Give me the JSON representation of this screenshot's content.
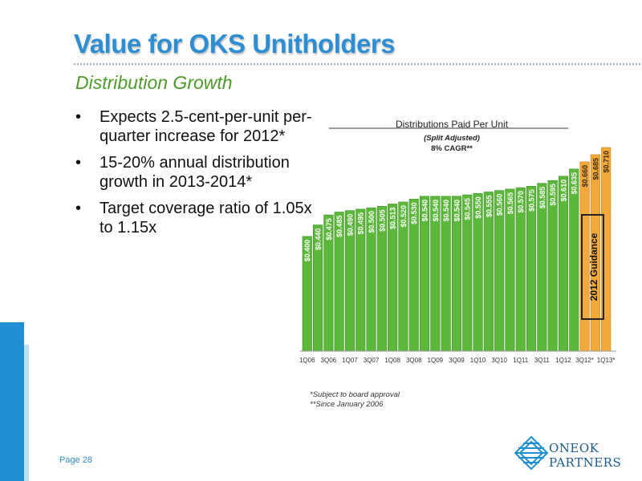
{
  "slide": {
    "title": "Value for OKS Unitholders",
    "subtitle": "Distribution Growth",
    "bullets": [
      "Expects 2.5-cent-per-unit per-quarter increase for 2012*",
      "15-20% annual distribution growth in 2013-2014*",
      "Target coverage ratio of 1.05x to 1.15x"
    ],
    "bullet_symbol": "•",
    "page_label": "Page 28",
    "footnotes": [
      "*Subject to board approval",
      "**Since January 2006"
    ],
    "logo": {
      "line1": "ONEOK",
      "line2": "PARTNERS",
      "icon": "oneok-partners-logo-icon"
    },
    "colors": {
      "title": "#2e8ed4",
      "subtitle": "#4e9a2a",
      "bar_actual": "#5cb83a",
      "bar_guidance": "#f2a93b",
      "accent_blue": "#1f8fd2"
    }
  },
  "chart_data": {
    "type": "bar",
    "title": "Distributions Paid Per Unit",
    "subtitle": "(Split Adjusted)",
    "cagr_label": "8% CAGR**",
    "guidance_label": "2012 Guidance",
    "ylim": [
      0,
      0.75
    ],
    "categories": [
      "1Q06",
      "",
      "3Q06",
      "",
      "1Q07",
      "",
      "3Q07",
      "",
      "1Q08",
      "",
      "3Q08",
      "",
      "1Q09",
      "",
      "3Q09",
      "",
      "1Q10",
      "",
      "3Q10",
      "",
      "1Q11",
      "",
      "3Q11",
      "",
      "1Q12",
      "",
      "3Q12*",
      "",
      "1Q13*"
    ],
    "values": [
      0.4,
      0.44,
      0.475,
      0.485,
      0.49,
      0.495,
      0.5,
      0.505,
      0.513,
      0.52,
      0.53,
      0.54,
      0.54,
      0.54,
      0.54,
      0.545,
      0.55,
      0.555,
      0.56,
      0.565,
      0.57,
      0.575,
      0.585,
      0.595,
      0.61,
      0.635,
      0.66,
      0.685,
      0.71
    ],
    "value_labels": [
      "$0.400",
      "$0.440",
      "$0.475",
      "$0.485",
      "$0.490",
      "$0.495",
      "$0.500",
      "$0.505",
      "$0.513",
      "$0.520",
      "$0.530",
      "$0.540",
      "$0.540",
      "$0.540",
      "$0.540",
      "$0.545",
      "$0.550",
      "$0.555",
      "$0.560",
      "$0.565",
      "$0.570",
      "$0.575",
      "$0.585",
      "$0.595",
      "$0.610",
      "$0.635",
      "$0.660",
      "$0.685",
      "$0.710"
    ],
    "guidance_start_index": 26
  }
}
